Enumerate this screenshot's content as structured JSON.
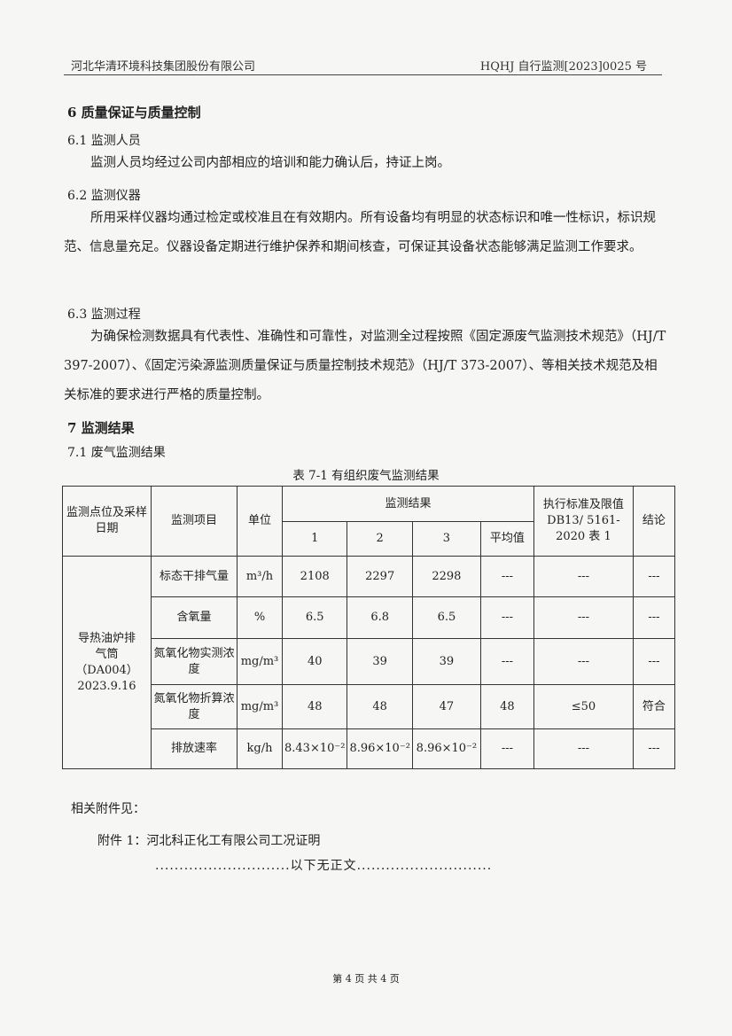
{
  "header": {
    "company": "河北华清环境科技集团股份有限公司",
    "report_no": "HQHJ 自行监测[2023]0025 号"
  },
  "s6": {
    "title": "6 质量保证与质量控制",
    "s61": {
      "title": "6.1 监测人员",
      "text": "监测人员均经过公司内部相应的培训和能力确认后，持证上岗。"
    },
    "s62": {
      "title": "6.2 监测仪器",
      "text": "所用采样仪器均通过检定或校准且在有效期内。所有设备均有明显的状态标识和唯一性标识，标识规范、信息量充足。仪器设备定期进行维护保养和期间核查，可保证其设备状态能够满足监测工作要求。"
    },
    "s63": {
      "title": "6.3 监测过程",
      "text": "为确保检测数据具有代表性、准确性和可靠性，对监测全过程按照《固定源废气监测技术规范》（HJ/T 397-2007）、《固定污染源监测质量保证与质量控制技术规范》（HJ/T 373-2007）、等相关技术规范及相关标准的要求进行严格的质量控制。"
    }
  },
  "s7": {
    "title": "7 监测结果",
    "s71": {
      "title": "7.1 废气监测结果"
    }
  },
  "table": {
    "caption": "表 7-1 有组织废气监测结果",
    "headers": {
      "point": "监测点位及采样日期",
      "item": "监测项目",
      "unit": "单位",
      "results": "监测结果",
      "r1": "1",
      "r2": "2",
      "r3": "3",
      "avg": "平均值",
      "std": "执行标准及限值DB13/ 5161-2020 表 1",
      "conclusion": "结论"
    },
    "point": "导热油炉排气筒（DA004）2023.9.16",
    "rows": [
      {
        "item": "标态干排气量",
        "unit": "m³/h",
        "v1": "2108",
        "v2": "2297",
        "v3": "2298",
        "avg": "---",
        "limit": "---",
        "result": "---"
      },
      {
        "item": "含氧量",
        "unit": "%",
        "v1": "6.5",
        "v2": "6.8",
        "v3": "6.5",
        "avg": "---",
        "limit": "---",
        "result": "---"
      },
      {
        "item": "氮氧化物实测浓度",
        "unit": "mg/m³",
        "v1": "40",
        "v2": "39",
        "v3": "39",
        "avg": "---",
        "limit": "---",
        "result": "---"
      },
      {
        "item": "氮氧化物折算浓度",
        "unit": "mg/m³",
        "v1": "48",
        "v2": "48",
        "v3": "47",
        "avg": "48",
        "limit": "≤50",
        "result": "符合"
      },
      {
        "item": "排放速率",
        "unit": "kg/h",
        "v1": "8.43×10⁻²",
        "v2": "8.96×10⁻²",
        "v3": "8.96×10⁻²",
        "avg": "---",
        "limit": "---",
        "result": "---"
      }
    ]
  },
  "attach": {
    "intro": "相关附件见：",
    "item1": "附件 1：河北科正化工有限公司工况证明",
    "end": "............................以下无正文............................"
  },
  "footer": "第 4 页 共 4 页"
}
